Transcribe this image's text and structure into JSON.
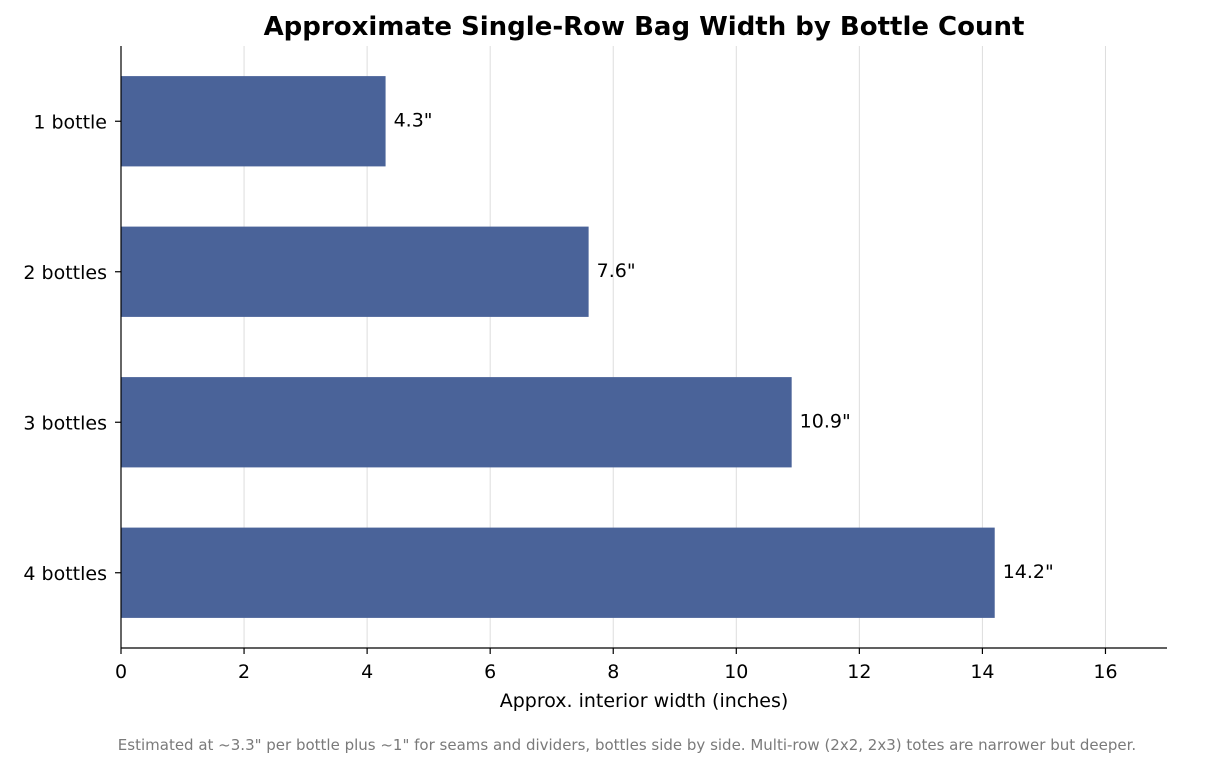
{
  "chart_data": {
    "type": "bar",
    "orientation": "horizontal",
    "title": "Approximate Single-Row Bag Width by Bottle Count",
    "xlabel": "Approx. interior width (inches)",
    "ylabel": "",
    "categories": [
      "1 bottle",
      "2 bottles",
      "3 bottles",
      "4 bottles"
    ],
    "values": [
      4.3,
      7.6,
      10.9,
      14.2
    ],
    "data_labels": [
      "4.3\"",
      "7.6\"",
      "10.9\"",
      "14.2\""
    ],
    "xlim": [
      0,
      17
    ],
    "xticks": [
      0,
      2,
      4,
      6,
      8,
      10,
      12,
      14,
      16
    ],
    "grid": "vertical",
    "bar_color": "#4a6399",
    "footnote": "Estimated at ~3.3\" per bottle plus ~1\" for seams and dividers, bottles side by side. Multi-row (2x2, 2x3) totes are narrower but deeper."
  }
}
